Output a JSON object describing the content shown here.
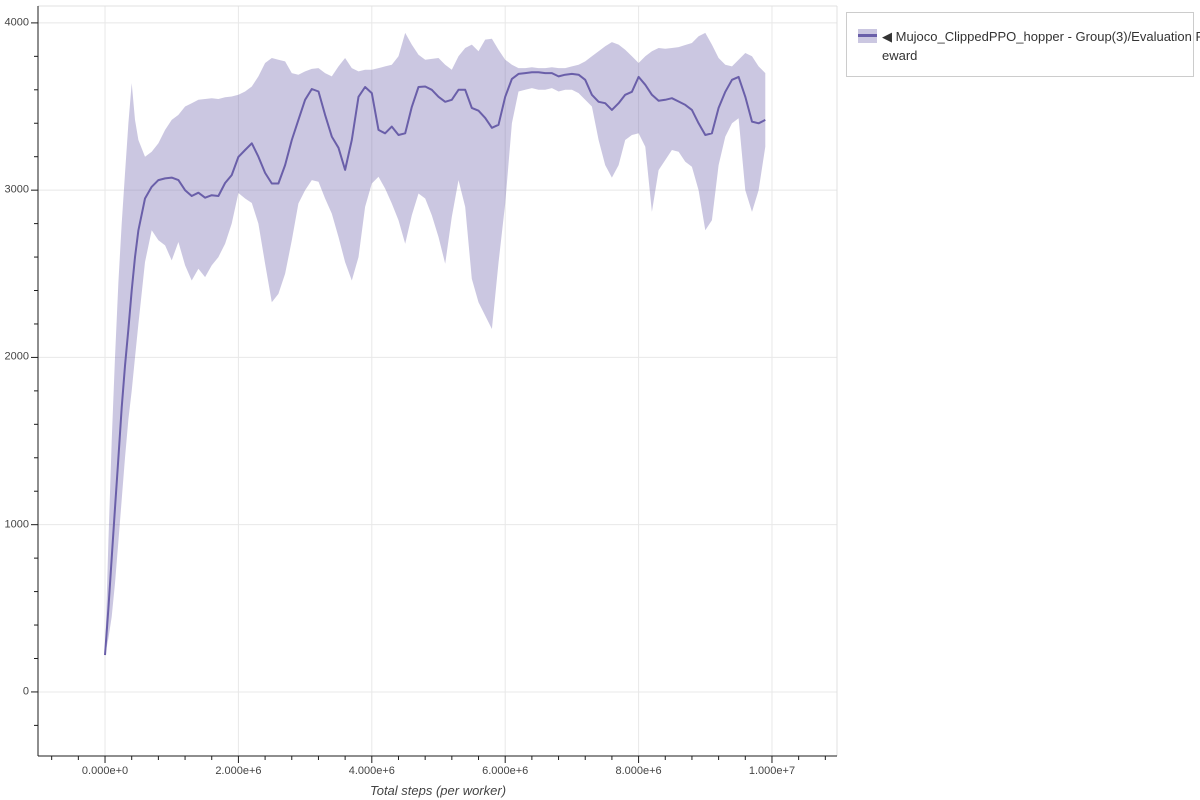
{
  "legend": {
    "label": "◀ Mujoco_ClippedPPO_hopper - Group(3)/Evaluation Reward",
    "lines": [
      "◀ Mujoco_ClippedPPO_hopper - Group(3)/Evaluation R",
      "eward"
    ]
  },
  "colors": {
    "line": "#6a5fa9",
    "band": "#6a5faa",
    "band_opacity": 0.35,
    "grid": "#e8e8e8",
    "axis": "#1c1c1c",
    "plot_border": "#e0e0e0",
    "tick_label": "#444444",
    "legend_border": "#cccccc",
    "legend_text": "#333333",
    "background": "#ffffff"
  },
  "chart_data": {
    "type": "line",
    "title": "",
    "xlabel": "Total steps (per worker)",
    "ylabel": "",
    "grid": true,
    "legend_position": "outside-top-right",
    "xlim": [
      -1005000,
      10975000
    ],
    "ylim": [
      -383,
      4101
    ],
    "x_axis": {
      "tick_values": [
        0,
        2000000,
        4000000,
        6000000,
        8000000,
        10000000
      ],
      "tick_labels": [
        "0.000e+0",
        "2.000e+6",
        "4.000e+6",
        "6.000e+6",
        "8.000e+6",
        "1.000e+7"
      ],
      "minor_step": 400000
    },
    "y_axis": {
      "tick_values": [
        0,
        1000,
        2000,
        3000,
        4000
      ],
      "tick_labels": [
        "0",
        "1000",
        "2000",
        "3000",
        "4000"
      ],
      "minor_step": 200
    },
    "series": [
      {
        "name": "Mujoco_ClippedPPO_hopper - Group(3)/Evaluation Reward",
        "x_steps_millions": [
          0,
          0.05,
          0.1,
          0.15,
          0.2,
          0.25,
          0.3,
          0.35,
          0.4,
          0.45,
          0.5,
          0.6,
          0.7,
          0.8,
          0.9,
          1.0,
          1.1,
          1.2,
          1.3,
          1.4,
          1.5,
          1.6,
          1.7,
          1.8,
          1.9,
          2.0,
          2.1,
          2.2,
          2.3,
          2.4,
          2.5,
          2.6,
          2.7,
          2.8,
          2.9,
          3.0,
          3.1,
          3.2,
          3.3,
          3.4,
          3.5,
          3.6,
          3.7,
          3.8,
          3.9,
          4.0,
          4.1,
          4.2,
          4.3,
          4.4,
          4.5,
          4.6,
          4.7,
          4.8,
          4.9,
          5.0,
          5.1,
          5.2,
          5.3,
          5.4,
          5.5,
          5.6,
          5.7,
          5.8,
          5.9,
          6.0,
          6.1,
          6.2,
          6.3,
          6.4,
          6.5,
          6.6,
          6.7,
          6.8,
          6.9,
          7.0,
          7.1,
          7.2,
          7.3,
          7.4,
          7.5,
          7.6,
          7.7,
          7.8,
          7.9,
          8.0,
          8.1,
          8.2,
          8.3,
          8.4,
          8.5,
          8.6,
          8.7,
          8.8,
          8.9,
          9.0,
          9.1,
          9.2,
          9.3,
          9.4,
          9.5,
          9.6,
          9.7,
          9.8,
          9.9
        ],
        "mean": [
          220,
          500,
          800,
          1100,
          1400,
          1700,
          1950,
          2170,
          2400,
          2600,
          2760,
          2950,
          3020,
          3060,
          3070,
          3075,
          3060,
          3000,
          2965,
          2985,
          2955,
          2970,
          2965,
          3043,
          3090,
          3199,
          3240,
          3280,
          3200,
          3103,
          3040,
          3040,
          3150,
          3300,
          3420,
          3540,
          3605,
          3590,
          3450,
          3320,
          3253,
          3121,
          3300,
          3558,
          3617,
          3580,
          3360,
          3340,
          3380,
          3330,
          3340,
          3498,
          3617,
          3620,
          3600,
          3558,
          3528,
          3540,
          3600,
          3600,
          3492,
          3475,
          3432,
          3373,
          3391,
          3558,
          3665,
          3695,
          3700,
          3705,
          3705,
          3700,
          3700,
          3680,
          3690,
          3695,
          3690,
          3660,
          3570,
          3528,
          3520,
          3480,
          3520,
          3570,
          3588,
          3677,
          3630,
          3570,
          3535,
          3540,
          3550,
          3530,
          3510,
          3480,
          3400,
          3330,
          3340,
          3492,
          3588,
          3660,
          3677,
          3558,
          3410,
          3400,
          3420
        ],
        "band_lower": [
          220,
          320,
          450,
          650,
          900,
          1150,
          1400,
          1630,
          1800,
          2000,
          2200,
          2570,
          2760,
          2700,
          2670,
          2580,
          2690,
          2550,
          2460,
          2530,
          2480,
          2550,
          2600,
          2680,
          2800,
          2983,
          2950,
          2923,
          2800,
          2560,
          2330,
          2380,
          2500,
          2700,
          2920,
          3000,
          3060,
          3050,
          2950,
          2860,
          2720,
          2570,
          2460,
          2600,
          2900,
          3040,
          3080,
          3010,
          2920,
          2820,
          2680,
          2850,
          2980,
          2950,
          2850,
          2720,
          2560,
          2840,
          3060,
          2900,
          2470,
          2330,
          2250,
          2170,
          2565,
          2920,
          3400,
          3590,
          3600,
          3610,
          3600,
          3600,
          3610,
          3590,
          3600,
          3600,
          3580,
          3540,
          3500,
          3300,
          3150,
          3075,
          3150,
          3300,
          3330,
          3340,
          3260,
          2870,
          3120,
          3180,
          3240,
          3230,
          3170,
          3140,
          3000,
          2760,
          2820,
          3150,
          3320,
          3400,
          3430,
          3000,
          2870,
          3000,
          3260
        ],
        "band_upper": [
          220,
          900,
          1500,
          2000,
          2450,
          2800,
          3100,
          3400,
          3640,
          3420,
          3300,
          3200,
          3230,
          3280,
          3360,
          3420,
          3450,
          3500,
          3520,
          3540,
          3545,
          3550,
          3545,
          3555,
          3560,
          3570,
          3590,
          3620,
          3680,
          3760,
          3790,
          3780,
          3770,
          3700,
          3690,
          3710,
          3725,
          3730,
          3700,
          3680,
          3740,
          3790,
          3730,
          3710,
          3720,
          3720,
          3730,
          3740,
          3750,
          3800,
          3940,
          3870,
          3810,
          3780,
          3785,
          3790,
          3750,
          3720,
          3800,
          3850,
          3870,
          3830,
          3900,
          3905,
          3840,
          3780,
          3750,
          3730,
          3730,
          3735,
          3730,
          3730,
          3735,
          3730,
          3730,
          3740,
          3750,
          3770,
          3800,
          3830,
          3860,
          3885,
          3870,
          3840,
          3800,
          3760,
          3800,
          3830,
          3850,
          3845,
          3850,
          3855,
          3868,
          3880,
          3920,
          3940,
          3870,
          3790,
          3750,
          3740,
          3780,
          3820,
          3800,
          3740,
          3700
        ]
      }
    ]
  }
}
